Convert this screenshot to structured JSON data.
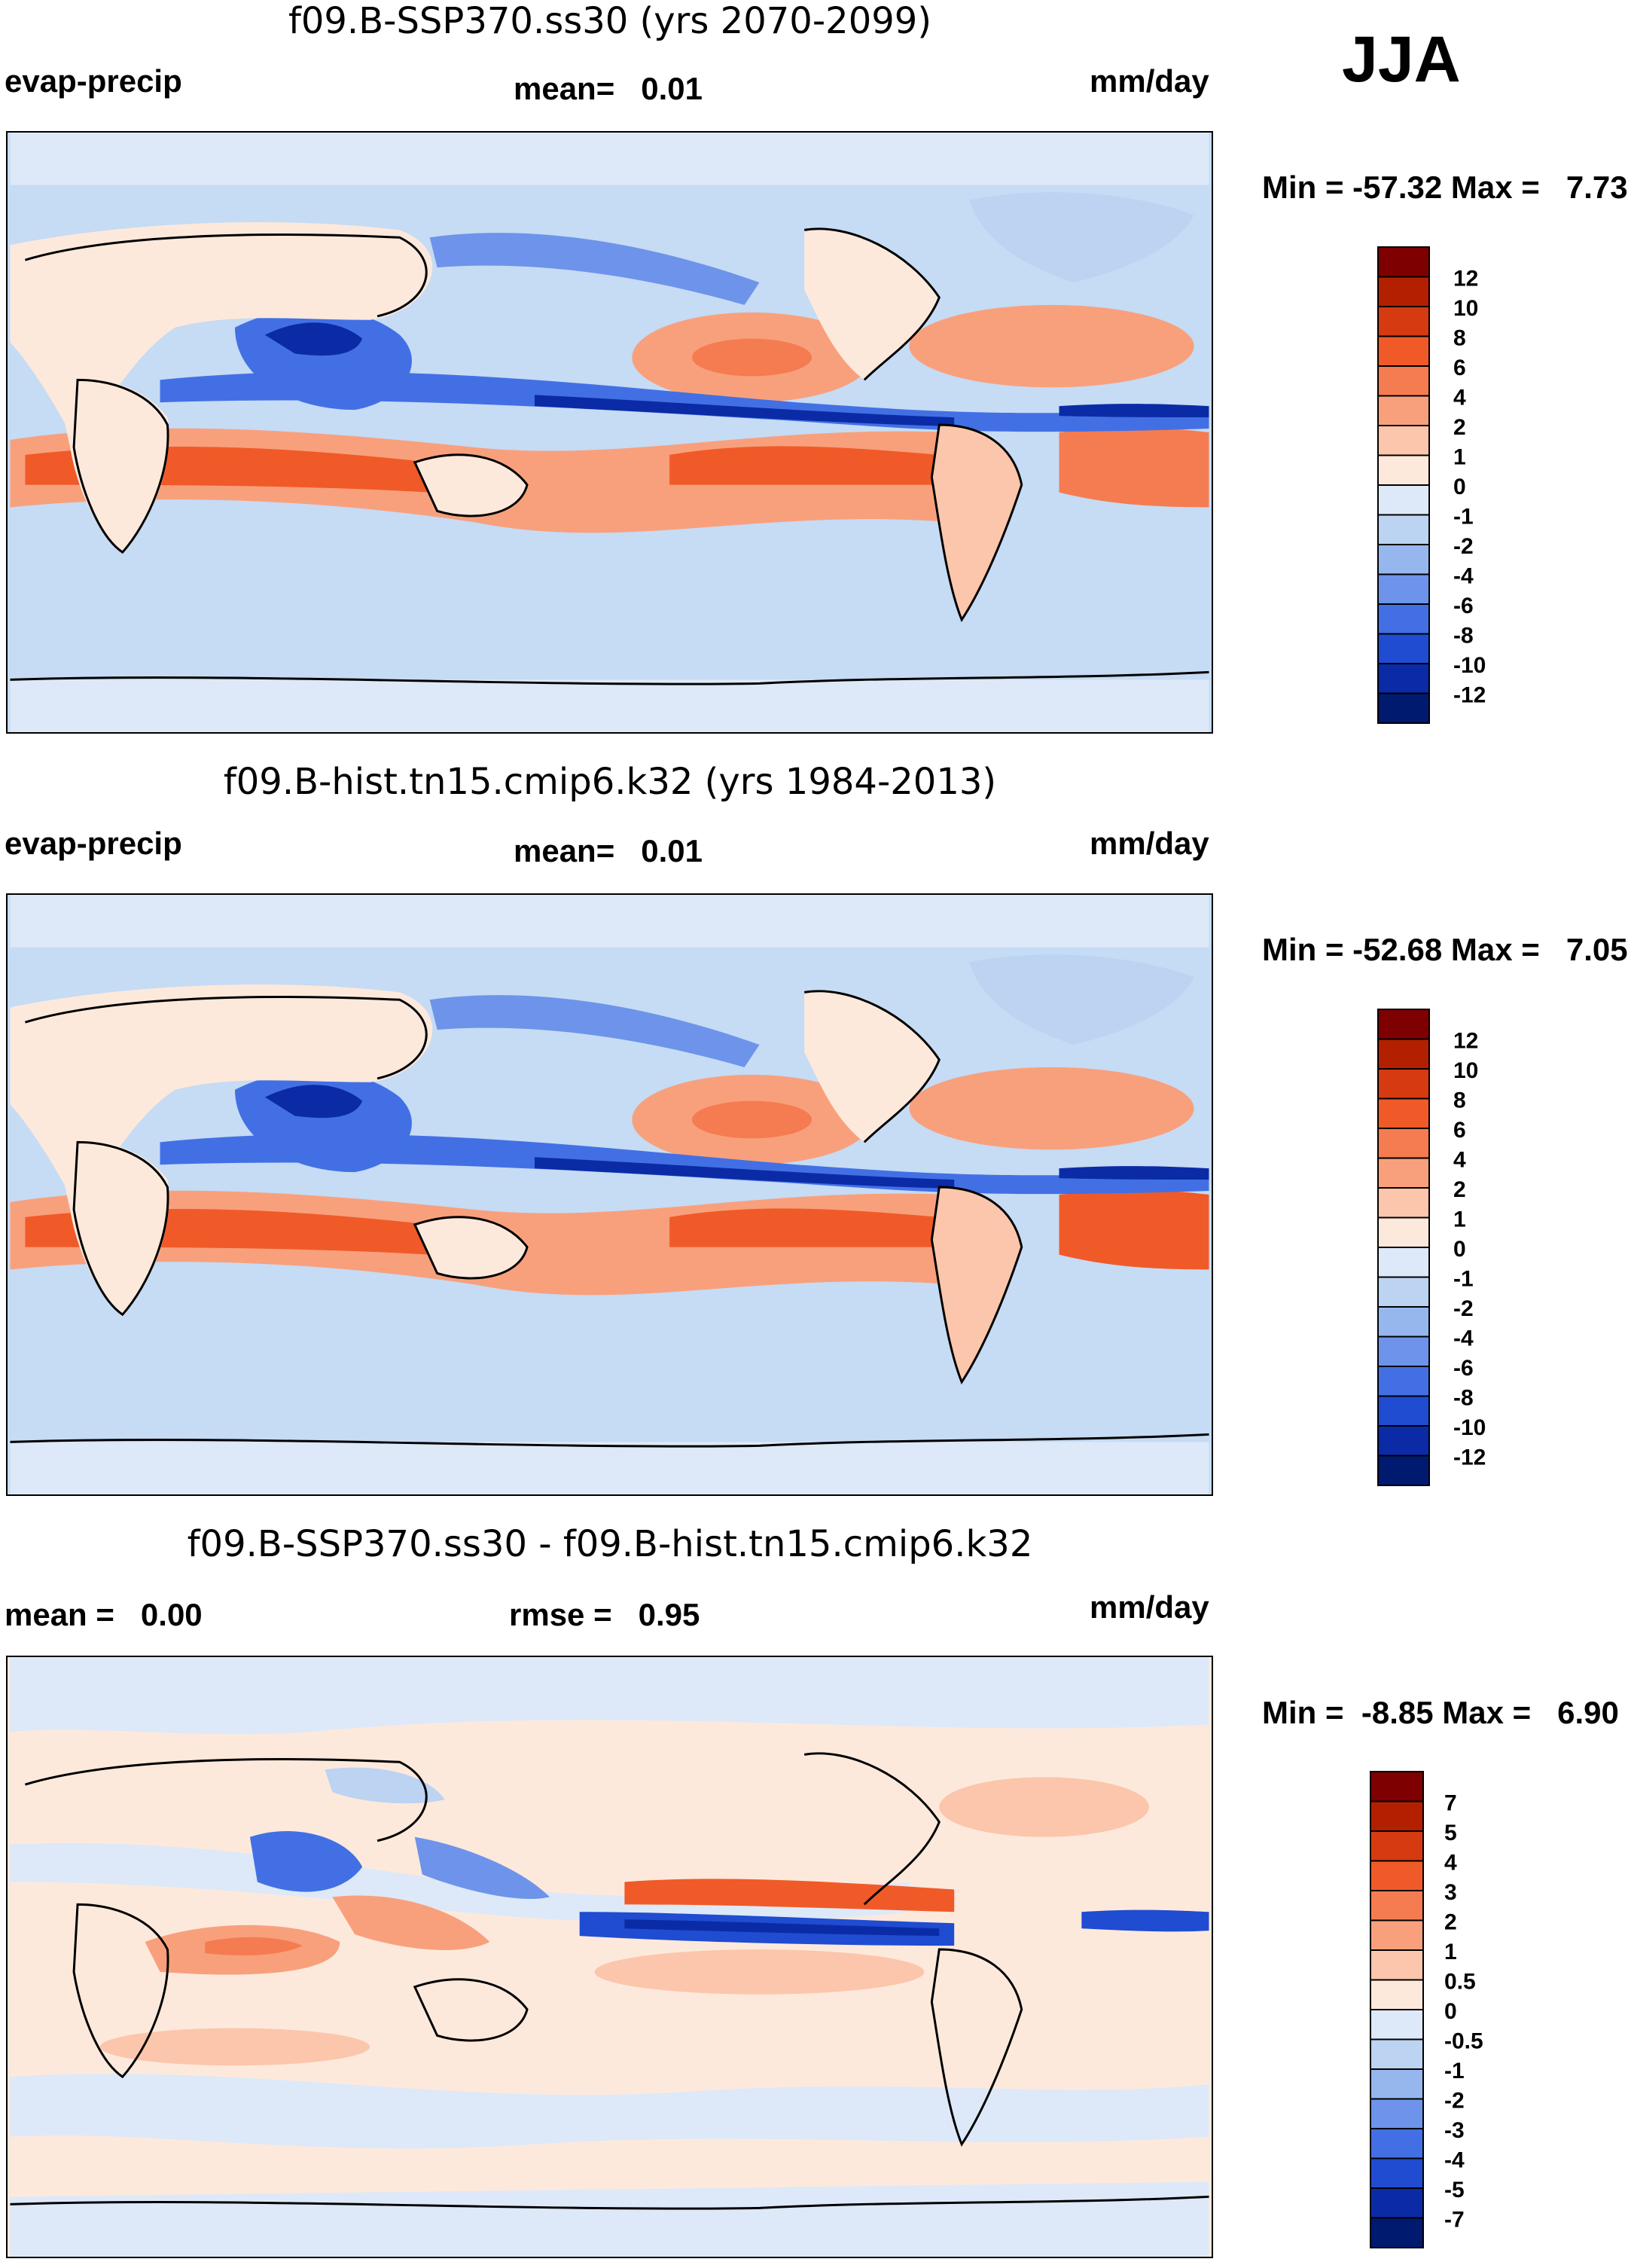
{
  "season": "JJA",
  "panels": [
    {
      "title": "f09.B-SSP370.ss30 (yrs 2070-2099)",
      "left_label": "evap-precip",
      "center_label": "mean=   0.01",
      "units": "mm/day",
      "stats": "Min = -57.32 Max =   7.73",
      "colorbar": {
        "labels": [
          "12",
          "10",
          "8",
          "6",
          "4",
          "2",
          "1",
          "0",
          "-1",
          "-2",
          "-4",
          "-6",
          "-8",
          "-10",
          "-12"
        ],
        "colors": [
          "#7f0000",
          "#b22000",
          "#d63a10",
          "#f05a28",
          "#f57c50",
          "#f8a07c",
          "#fbc6ab",
          "#fde9dc",
          "#dde9f8",
          "#bcd3f2",
          "#96b7ee",
          "#6d94ea",
          "#4270e4",
          "#1f4cd0",
          "#0b2ba6",
          "#001a70"
        ]
      }
    },
    {
      "title": "f09.B-hist.tn15.cmip6.k32 (yrs 1984-2013)",
      "left_label": "evap-precip",
      "center_label": "mean=   0.01",
      "units": "mm/day",
      "stats": "Min = -52.68 Max =   7.05",
      "colorbar": {
        "labels": [
          "12",
          "10",
          "8",
          "6",
          "4",
          "2",
          "1",
          "0",
          "-1",
          "-2",
          "-4",
          "-6",
          "-8",
          "-10",
          "-12"
        ],
        "colors": [
          "#7f0000",
          "#b22000",
          "#d63a10",
          "#f05a28",
          "#f57c50",
          "#f8a07c",
          "#fbc6ab",
          "#fde9dc",
          "#dde9f8",
          "#bcd3f2",
          "#96b7ee",
          "#6d94ea",
          "#4270e4",
          "#1f4cd0",
          "#0b2ba6",
          "#001a70"
        ]
      }
    },
    {
      "title": "f09.B-SSP370.ss30 - f09.B-hist.tn15.cmip6.k32",
      "left_label": "mean =   0.00",
      "center_label": "rmse =   0.95",
      "units": "mm/day",
      "stats": "Min =  -8.85 Max =   6.90",
      "colorbar": {
        "labels": [
          "7",
          "5",
          "4",
          "3",
          "2",
          "1",
          "0.5",
          "0",
          "-0.5",
          "-1",
          "-2",
          "-3",
          "-4",
          "-5",
          "-7"
        ],
        "colors": [
          "#7f0000",
          "#b22000",
          "#d63a10",
          "#f05a28",
          "#f57c50",
          "#f8a07c",
          "#fbc6ab",
          "#fde9dc",
          "#dde9f8",
          "#bcd3f2",
          "#96b7ee",
          "#6d94ea",
          "#4270e4",
          "#1f4cd0",
          "#0b2ba6",
          "#001a70"
        ]
      }
    }
  ]
}
